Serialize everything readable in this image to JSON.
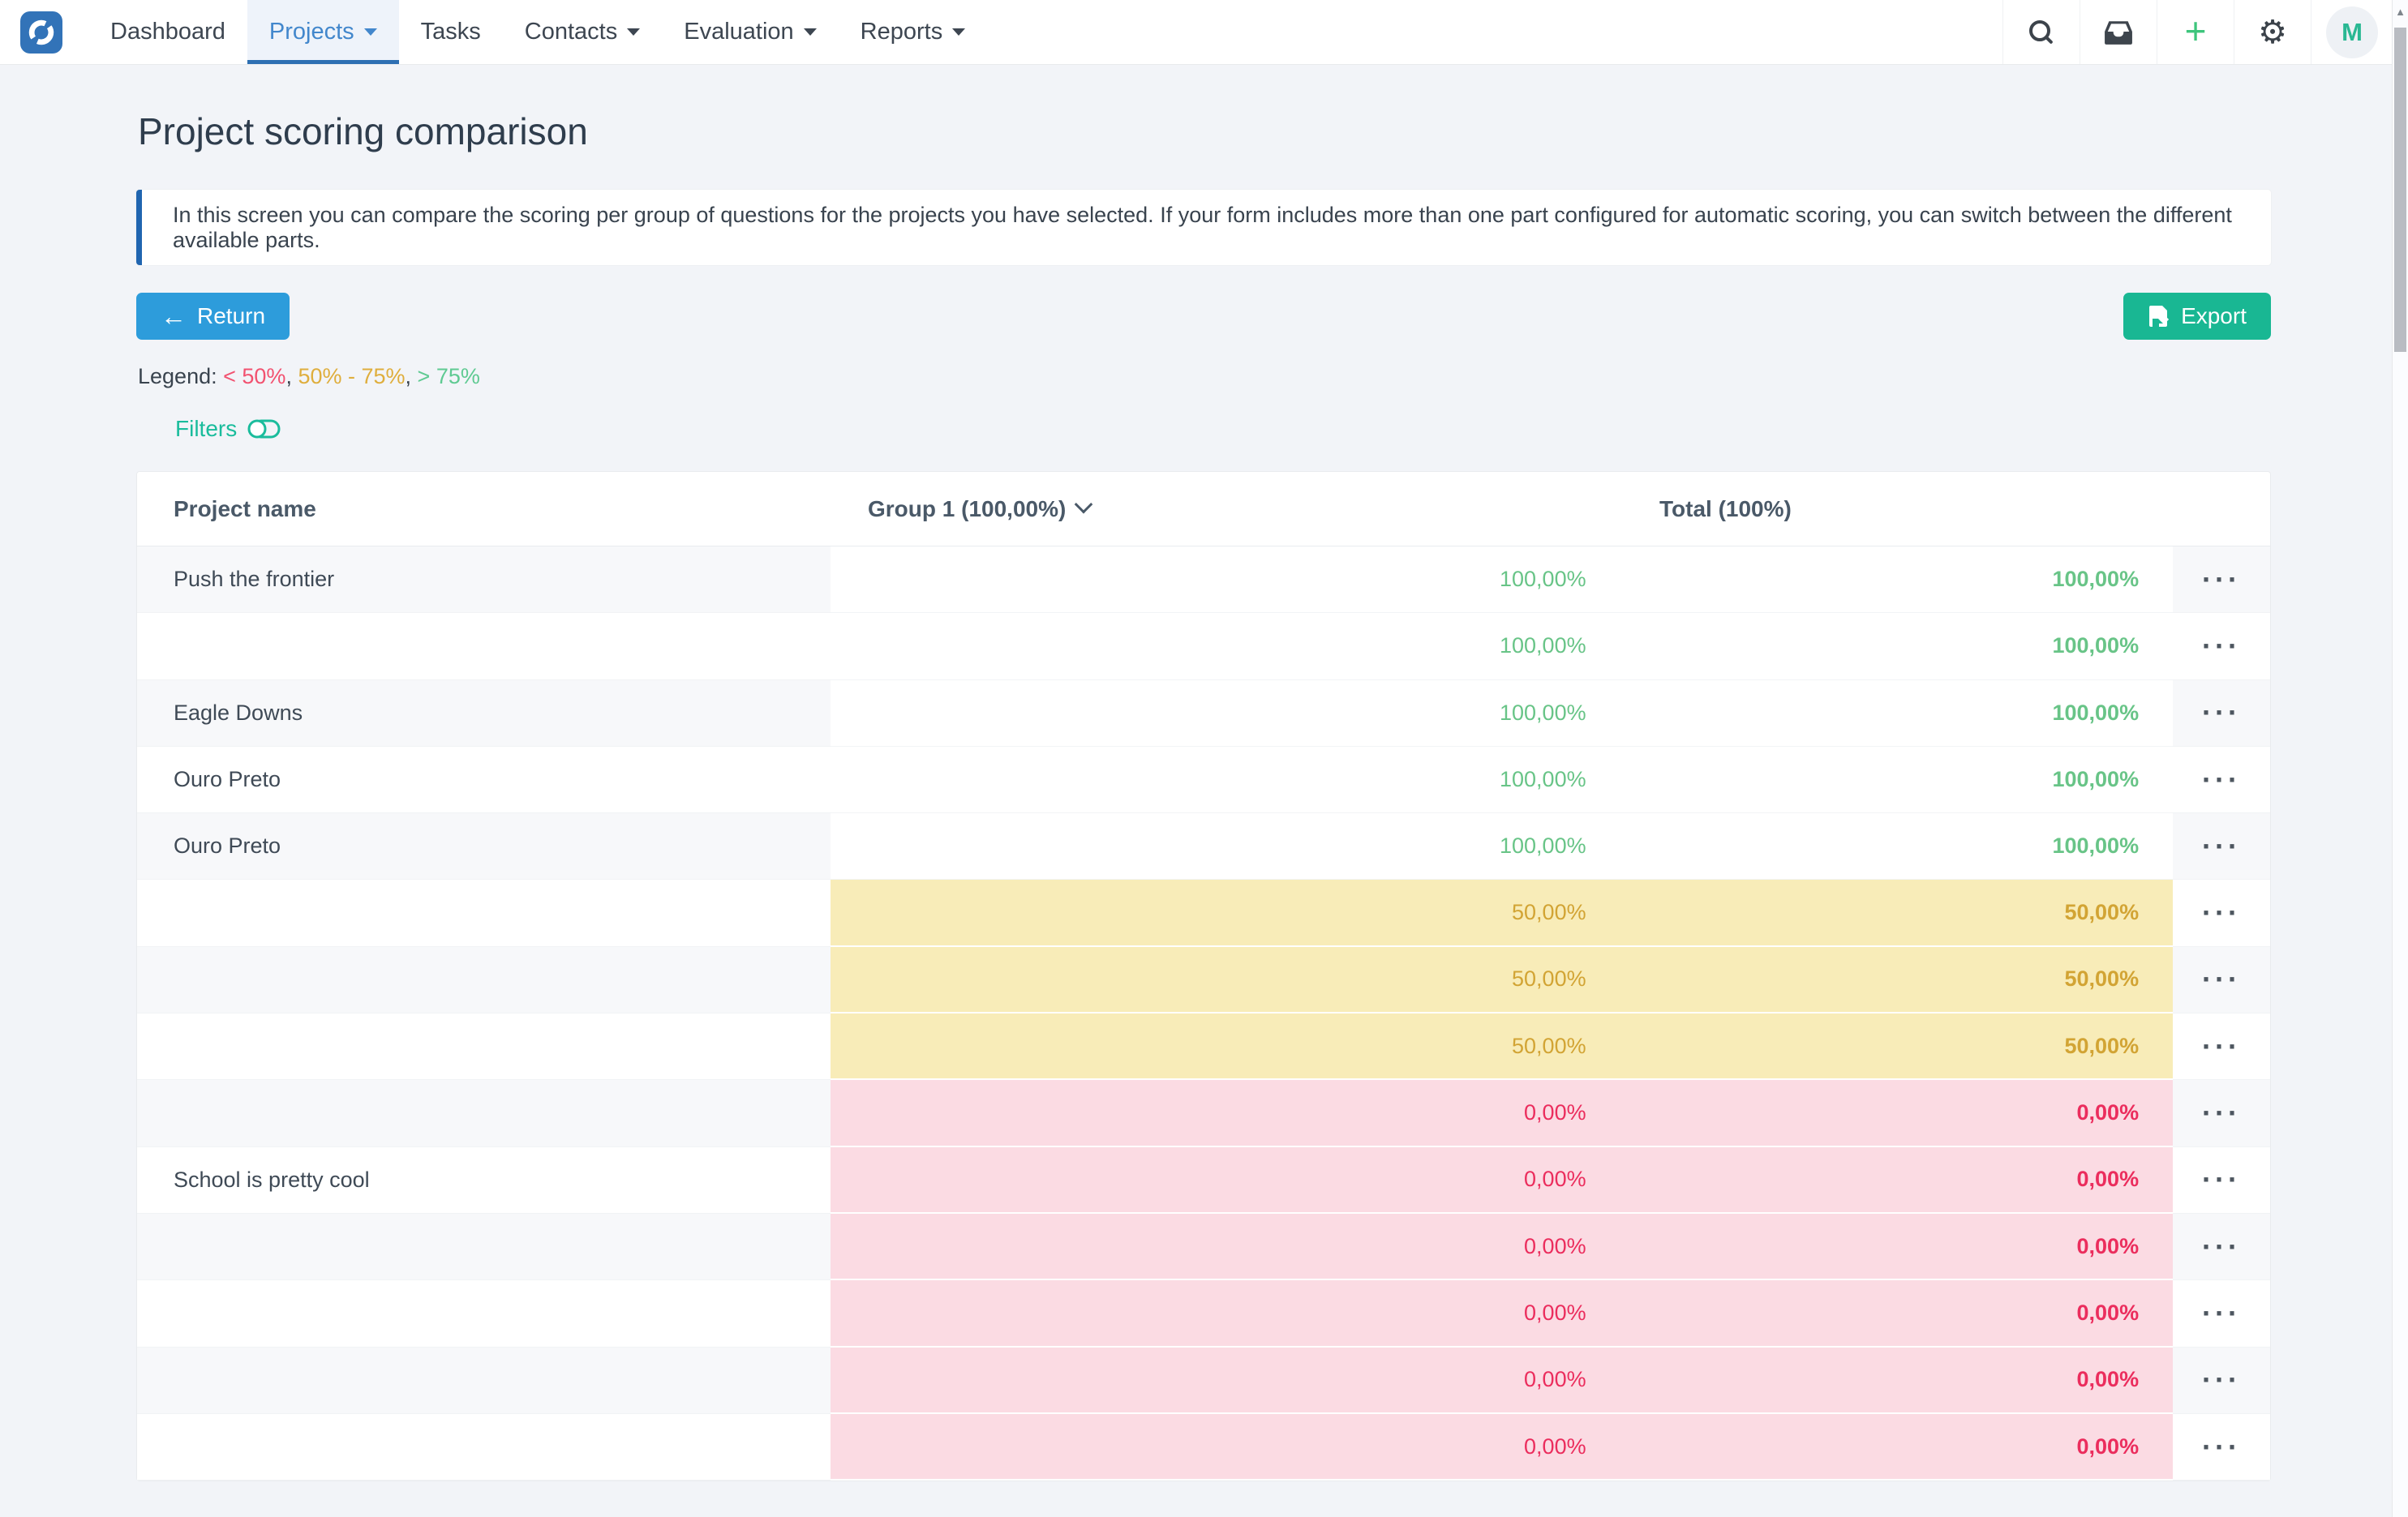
{
  "nav": {
    "items": [
      {
        "label": "Dashboard",
        "active": false,
        "caret": false
      },
      {
        "label": "Projects",
        "active": true,
        "caret": true
      },
      {
        "label": "Tasks",
        "active": false,
        "caret": false
      },
      {
        "label": "Contacts",
        "active": false,
        "caret": true
      },
      {
        "label": "Evaluation",
        "active": false,
        "caret": true
      },
      {
        "label": "Reports",
        "active": false,
        "caret": true
      }
    ],
    "icons": [
      "search-icon",
      "inbox-icon",
      "add-icon",
      "settings-icon"
    ],
    "add_glyph": "+",
    "settings_glyph": "⚙",
    "avatar_initial": "M"
  },
  "page": {
    "title": "Project scoring comparison",
    "info": "In this screen you can compare the scoring per group of questions for the projects you have selected. If your form includes more than one part configured for automatic scoring, you can switch between the different available parts.",
    "return_label": "Return",
    "return_arrow": "←",
    "export_label": "Export",
    "filters_label": "Filters",
    "legend_label": "Legend:",
    "legend_items": [
      {
        "text": "< 50%",
        "class": "lg-red",
        "color": "#f25270"
      },
      {
        "text": "50% - 75%",
        "class": "lg-amber",
        "color": "#dfae3d"
      },
      {
        "text": "> 75%",
        "class": "lg-green",
        "color": "#5fca92"
      }
    ]
  },
  "table": {
    "columns": [
      {
        "label": "Project name"
      },
      {
        "label": "Group 1 (100,00%)"
      },
      {
        "label": "Total (100%)"
      }
    ],
    "action_label": "···",
    "rows": [
      {
        "name": "Push the frontier",
        "group1": "100,00%",
        "total": "100,00%",
        "level": "high"
      },
      {
        "name": "",
        "group1": "100,00%",
        "total": "100,00%",
        "level": "high"
      },
      {
        "name": "Eagle Downs",
        "group1": "100,00%",
        "total": "100,00%",
        "level": "high"
      },
      {
        "name": "Ouro Preto",
        "group1": "100,00%",
        "total": "100,00%",
        "level": "high"
      },
      {
        "name": "Ouro Preto",
        "group1": "100,00%",
        "total": "100,00%",
        "level": "high"
      },
      {
        "name": "",
        "group1": "50,00%",
        "total": "50,00%",
        "level": "mid"
      },
      {
        "name": "",
        "group1": "50,00%",
        "total": "50,00%",
        "level": "mid"
      },
      {
        "name": "",
        "group1": "50,00%",
        "total": "50,00%",
        "level": "mid"
      },
      {
        "name": "",
        "group1": "0,00%",
        "total": "0,00%",
        "level": "low"
      },
      {
        "name": "School is pretty cool",
        "group1": "0,00%",
        "total": "0,00%",
        "level": "low"
      },
      {
        "name": "",
        "group1": "0,00%",
        "total": "0,00%",
        "level": "low"
      },
      {
        "name": "",
        "group1": "0,00%",
        "total": "0,00%",
        "level": "low"
      },
      {
        "name": "",
        "group1": "0,00%",
        "total": "0,00%",
        "level": "low"
      },
      {
        "name": "",
        "group1": "0,00%",
        "total": "0,00%",
        "level": "low"
      }
    ]
  },
  "colors": {
    "nav_active_blue": "#2e6fb2",
    "logo_blue": "#3273b8",
    "return_blue": "#2d9cdb",
    "accent_green": "#1abc9c",
    "high_text": "#68c487",
    "mid_bg": "#f8ecb8",
    "mid_text": "#d2a434",
    "low_bg": "#fbdbe3",
    "low_text": "#eb2d5d"
  }
}
